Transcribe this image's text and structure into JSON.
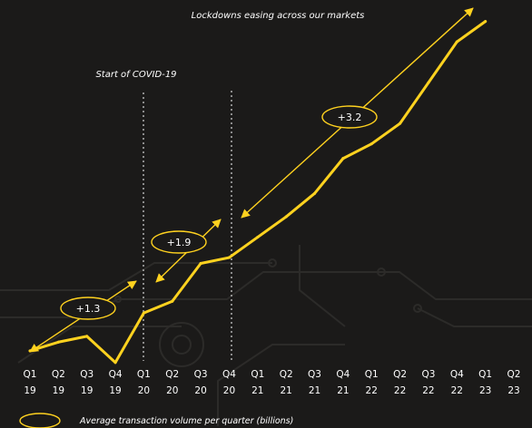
{
  "colors": {
    "background": "#1b1a19",
    "line": "#ffd21f",
    "text": "#ffffff",
    "divider": "#d8d8d8",
    "circuit": "#2c2b29"
  },
  "chart_data": {
    "type": "line",
    "title": "",
    "xlabel": "",
    "ylabel": "",
    "grid": false,
    "legend_position": "bottom-left",
    "categories": [
      [
        "Q1",
        "19"
      ],
      [
        "Q2",
        "19"
      ],
      [
        "Q3",
        "19"
      ],
      [
        "Q4",
        "19"
      ],
      [
        "Q1",
        "20"
      ],
      [
        "Q2",
        "20"
      ],
      [
        "Q3",
        "20"
      ],
      [
        "Q4",
        "20"
      ],
      [
        "Q1",
        "21"
      ],
      [
        "Q2",
        "21"
      ],
      [
        "Q3",
        "21"
      ],
      [
        "Q4",
        "21"
      ],
      [
        "Q1",
        "22"
      ],
      [
        "Q2",
        "22"
      ],
      [
        "Q3",
        "22"
      ],
      [
        "Q4",
        "22"
      ],
      [
        "Q1",
        "23"
      ],
      [
        "Q2",
        "23"
      ]
    ],
    "series": [
      {
        "name": "Average transaction volume per quarter (billions)",
        "values": [
          0.0,
          0.3,
          0.5,
          -0.4,
          1.3,
          1.7,
          3.0,
          3.2,
          3.9,
          4.6,
          5.4,
          6.6,
          7.1,
          7.8,
          9.2,
          10.6,
          11.3,
          null
        ]
      }
    ],
    "ylim": [
      -0.5,
      11.6
    ],
    "annotations": {
      "covid_label": "Start of COVID-19",
      "lockdown_label": "Lockdowns easing across our markets",
      "increase_1": "+1.3",
      "increase_2": "+1.9",
      "increase_3": "+3.2"
    },
    "legend_label": "Average transaction volume per quarter (billions)"
  }
}
